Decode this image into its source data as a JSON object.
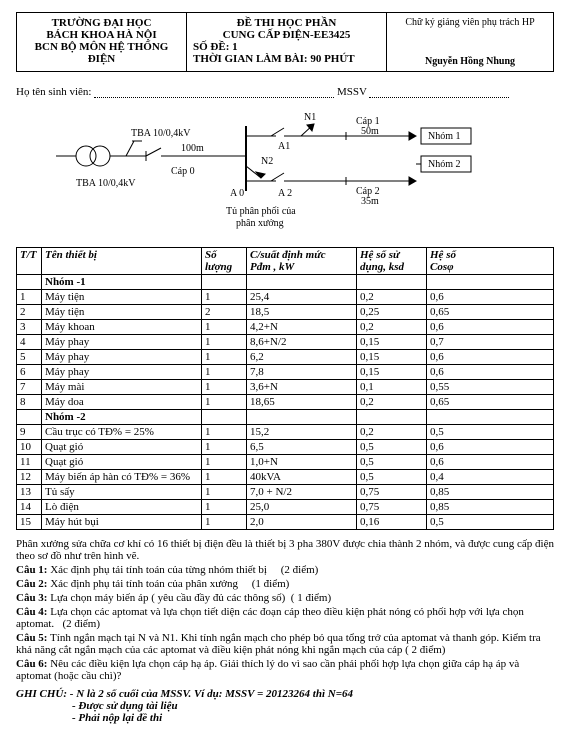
{
  "header": {
    "school_l1": "TRƯỜNG ĐẠI HỌC",
    "school_l2": "BÁCH KHOA HÀ NỘI",
    "school_l3": "BCN BỘ MÔN HỆ THỐNG ĐIỆN",
    "title_l1": "ĐỀ THI HỌC PHẦN",
    "title_l2": "CUNG CẤP ĐIỆN-EE3425",
    "code_label": "SỐ ĐỀ: 1",
    "time_label": "THỜI GIAN LÀM BÀI: 90 PHÚT",
    "sig_label": "Chữ ký giảng viên phụ trách HP",
    "sig_name": "Nguyễn Hồng Nhung"
  },
  "student": {
    "name_label": "Họ tên sinh viên:",
    "id_label": "MSSV"
  },
  "diagram": {
    "tba": "TBA 10/0,4kV",
    "len_main": "100m",
    "cap0": "Cáp 0",
    "a0": "A 0",
    "a1": "A1",
    "a2": "A 2",
    "n1": "N1",
    "n2": "N2",
    "cap1": "Cáp 1",
    "cap1_len": "50m",
    "cap2": "Cáp 2",
    "cap2_len": "35m",
    "nhom1": "Nhóm 1",
    "nhom2": "Nhóm 2",
    "caption1": "Tủ phân phối của",
    "caption2": "phân xưởng"
  },
  "table": {
    "h_tt": "T/T",
    "h_name": "Tên thiết bị",
    "h_qty": "Số lượng",
    "h_power_l1": "C/suất định mức",
    "h_power_l2": "Pđm , kW",
    "h_ksd_l1": "Hệ số sử",
    "h_ksd_l2": "dụng, ksd",
    "h_cos_l1": "Hệ số",
    "h_cos_l2": "Cosφ",
    "g1": "Nhóm -1",
    "g2": "Nhóm -2",
    "rows1": [
      {
        "tt": "1",
        "n": "Máy tiện",
        "q": "1",
        "p": "25,4",
        "k": "0,2",
        "c": "0,6"
      },
      {
        "tt": "2",
        "n": "Máy tiện",
        "q": "2",
        "p": "18,5",
        "k": "0,25",
        "c": "0,65"
      },
      {
        "tt": "3",
        "n": "Máy khoan",
        "q": "1",
        "p": "4,2+N",
        "k": "0,2",
        "c": "0,6"
      },
      {
        "tt": "4",
        "n": "Máy phay",
        "q": "1",
        "p": "8,6+N/2",
        "k": "0,15",
        "c": "0,7"
      },
      {
        "tt": "5",
        "n": "Máy phay",
        "q": "1",
        "p": "6,2",
        "k": "0,15",
        "c": "0,6"
      },
      {
        "tt": "6",
        "n": "Máy phay",
        "q": "1",
        "p": "7,8",
        "k": "0,15",
        "c": "0,6"
      },
      {
        "tt": "7",
        "n": "Máy mài",
        "q": "1",
        "p": "3,6+N",
        "k": "0,1",
        "c": "0,55"
      },
      {
        "tt": "8",
        "n": "Máy doa",
        "q": "1",
        "p": "18,65",
        "k": "0,2",
        "c": "0,65"
      }
    ],
    "rows2": [
      {
        "tt": "9",
        "n": "Cầu trục có TĐ% = 25%",
        "q": "1",
        "p": "15,2",
        "k": "0,2",
        "c": "0,5"
      },
      {
        "tt": "10",
        "n": "Quạt gió",
        "q": "1",
        "p": "6,5",
        "k": "0,5",
        "c": "0,6"
      },
      {
        "tt": "11",
        "n": "Quạt gió",
        "q": "1",
        "p": "1,0+N",
        "k": "0,5",
        "c": "0,6"
      },
      {
        "tt": "12",
        "n": "Máy biến áp hàn có TĐ% = 36%",
        "q": "1",
        "p": "40kVA",
        "k": "0,5",
        "c": "0,4"
      },
      {
        "tt": "13",
        "n": "Tủ sấy",
        "q": "1",
        "p": "7,0 + N/2",
        "k": "0,75",
        "c": "0,85"
      },
      {
        "tt": "14",
        "n": "Lò điện",
        "q": "1",
        "p": "25,0",
        "k": "0,75",
        "c": "0,85"
      },
      {
        "tt": "15",
        "n": "Máy hút bụi",
        "q": "1",
        "p": "2,0",
        "k": "0,16",
        "c": "0,5"
      }
    ]
  },
  "body": {
    "intro": "Phân xưởng sửa chữa cơ khí có 16 thiết bị điện đều là thiết bị 3 pha 380V được chia thành 2 nhóm, và được cung cấp điện theo sơ đồ như trên hình vẽ.",
    "c1l": "Câu 1:",
    "c1": "Xác định phụ tải tính toán của từng nhóm thiết bị",
    "c1p": "(2 điểm)",
    "c2l": "Câu 2:",
    "c2": "Xác định phụ tải tính toán của phân xưởng",
    "c2p": "(1 điểm)",
    "c3l": "Câu 3:",
    "c3": "Lựa chọn máy biến áp ( yêu cầu đầy đủ các thông số)",
    "c3p": "( 1 điểm)",
    "c4l": "Câu 4:",
    "c4": "Lựa chọn các aptomat và lựa chọn tiết diện các đoạn cáp theo điều kiện phát nóng có phối hợp với lựa chọn aptomat.",
    "c4p": "(2 điểm)",
    "c5l": "Câu 5:",
    "c5": "Tính ngắn mạch tại N và N1. Khi tính ngắn mạch cho phép bỏ qua tổng trở của aptomat và thanh góp. Kiểm tra khả năng cắt ngắn mạch của các aptomat và điều kiện phát nóng khi ngắn mạch của cáp ( 2 điểm)",
    "c6l": "Câu 6:",
    "c6": "Nêu các điều kiện lựa chọn cáp hạ áp. Giải thích lý do vì sao cần phải phối hợp lựa chọn giữa cáp hạ áp và aptomat (hoặc cầu chì)?",
    "note1": "GHI CHÚ: - N là 2 số cuối của MSSV. Ví dụ: MSSV = 20123264 thì N=64",
    "note2": "- Được sử dụng tài liệu",
    "note3": "- Phải nộp lại đề thi"
  }
}
